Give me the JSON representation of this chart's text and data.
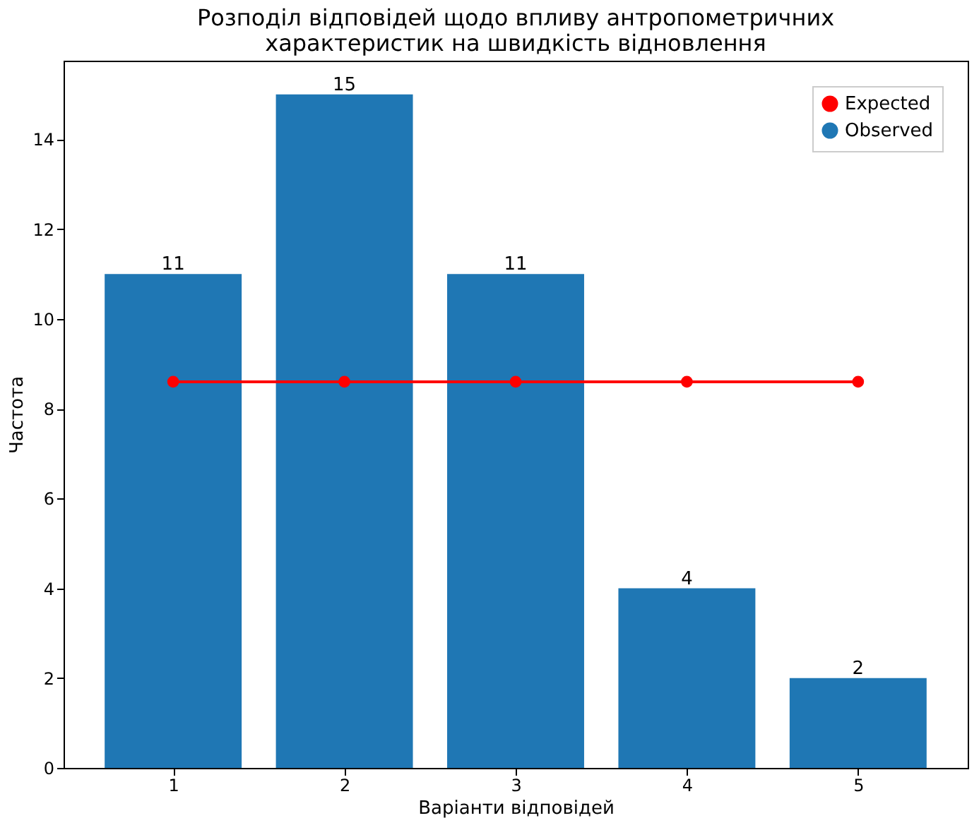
{
  "chart_data": {
    "type": "bar",
    "title": [
      "Розподіл відповідей щодо впливу антропометричних",
      "характеристик на швидкість відновлення"
    ],
    "xlabel": "Варіанти відповідей",
    "ylabel": "Частота",
    "x": [
      1,
      2,
      3,
      4,
      5
    ],
    "xlim": [
      0.36,
      5.64
    ],
    "xticks": [
      1,
      2,
      3,
      4,
      5
    ],
    "ylim": [
      0,
      15.75
    ],
    "yticks": [
      0,
      2,
      4,
      6,
      8,
      10,
      12,
      14
    ],
    "series": [
      {
        "name": "Expected",
        "type": "line",
        "color": "#ff0000",
        "marker": "circle",
        "values": [
          8.6,
          8.6,
          8.6,
          8.6,
          8.6
        ]
      },
      {
        "name": "Observed",
        "color": "#1f77b4",
        "values": [
          11,
          15,
          11,
          4,
          2
        ],
        "value_labels": [
          "11",
          "15",
          "11",
          "4",
          "2"
        ]
      }
    ],
    "legend": "top right",
    "grid": false
  }
}
